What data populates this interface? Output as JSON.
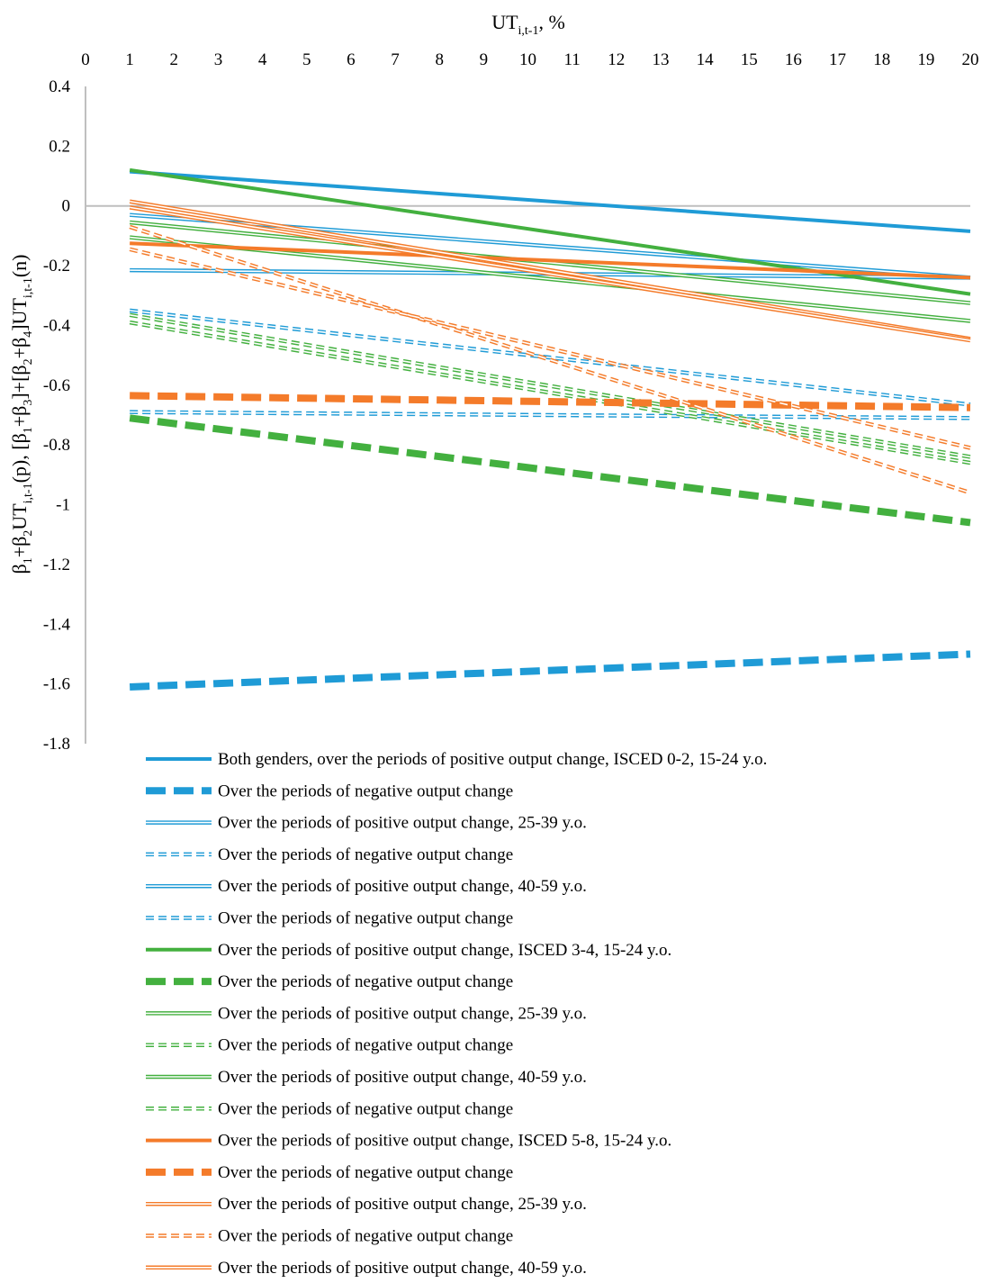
{
  "chart_data": {
    "type": "line",
    "title": "",
    "xlabel": {
      "base": "UT",
      "sub": "i,t-1",
      "suffix": ", %"
    },
    "ylabel": {
      "parts": [
        {
          "t": "β",
          "sub": false
        },
        {
          "t": "1",
          "sub": true
        },
        {
          "t": "+β",
          "sub": false
        },
        {
          "t": "2",
          "sub": true
        },
        {
          "t": "UT",
          "sub": false
        },
        {
          "t": "i,t-1",
          "sub": true
        },
        {
          "t": "(p), [β",
          "sub": false
        },
        {
          "t": "1",
          "sub": true
        },
        {
          "t": "+β",
          "sub": false
        },
        {
          "t": "3",
          "sub": true
        },
        {
          "t": "]+[β",
          "sub": false
        },
        {
          "t": "2",
          "sub": true
        },
        {
          "t": "+β",
          "sub": false
        },
        {
          "t": "4",
          "sub": true
        },
        {
          "t": "]UT",
          "sub": false
        },
        {
          "t": "i,t-1",
          "sub": true
        },
        {
          "t": "(n)",
          "sub": false
        }
      ]
    },
    "x_ticks": [
      0,
      1,
      2,
      3,
      4,
      5,
      6,
      7,
      8,
      9,
      10,
      11,
      12,
      13,
      14,
      15,
      16,
      17,
      18,
      19,
      20
    ],
    "y_ticks": [
      "0.4",
      "0.2",
      "0",
      "-0.2",
      "-0.4",
      "-0.6",
      "-0.8",
      "-1",
      "-1.2",
      "-1.4",
      "-1.6",
      "-1.8"
    ],
    "x_axis_position": "top",
    "xlim": [
      0,
      20
    ],
    "ylim": [
      -1.8,
      0.4
    ],
    "grid": false,
    "legend_position": "bottom",
    "colors": {
      "isced02": "#1f9bd6",
      "isced34": "#43b03f",
      "isced58": "#f47b2a",
      "axis": "#bfbfbf"
    },
    "series": [
      {
        "name": "Both genders, over the periods of positive output change, ISCED 0-2, 15-24 y.o.",
        "color": "#1f9bd6",
        "style": "solid-thick",
        "x": [
          1,
          20
        ],
        "values": [
          0.115,
          -0.085
        ]
      },
      {
        "name": "Over the periods of negative output change",
        "color": "#1f9bd6",
        "style": "dash-thick",
        "x": [
          1,
          20
        ],
        "values": [
          -1.61,
          -1.5
        ]
      },
      {
        "name": "Over the periods of positive output change, 25-39 y.o.",
        "color": "#1f9bd6",
        "style": "double",
        "x": [
          1,
          20
        ],
        "values": [
          -0.215,
          -0.24
        ]
      },
      {
        "name": "Over the periods of negative output change",
        "color": "#1f9bd6",
        "style": "double-dash",
        "x": [
          1,
          20
        ],
        "values": [
          -0.69,
          -0.71
        ]
      },
      {
        "name": "Over the periods of positive output change, 40-59 y.o.",
        "color": "#1f9bd6",
        "style": "double",
        "x": [
          1,
          20
        ],
        "values": [
          -0.03,
          -0.24
        ]
      },
      {
        "name": "Over the periods of negative output change",
        "color": "#1f9bd6",
        "style": "double-dash",
        "x": [
          1,
          20
        ],
        "values": [
          -0.35,
          -0.665
        ]
      },
      {
        "name": "Over the periods of positive output change, ISCED 3-4, 15-24 y.o.",
        "color": "#43b03f",
        "style": "solid-thick",
        "x": [
          1,
          20
        ],
        "values": [
          0.12,
          -0.295
        ]
      },
      {
        "name": "Over the periods of negative output change",
        "color": "#43b03f",
        "style": "dash-thick",
        "x": [
          1,
          20
        ],
        "values": [
          -0.71,
          -1.06
        ]
      },
      {
        "name": "Over the periods of positive output change, 25-39 y.o.",
        "color": "#43b03f",
        "style": "double",
        "x": [
          1,
          20
        ],
        "values": [
          -0.105,
          -0.385
        ]
      },
      {
        "name": "Over the periods of negative output change",
        "color": "#43b03f",
        "style": "double-dash",
        "x": [
          1,
          20
        ],
        "values": [
          -0.39,
          -0.86
        ]
      },
      {
        "name": "Over the periods of positive output change, 40-59 y.o.",
        "color": "#43b03f",
        "style": "double",
        "x": [
          1,
          20
        ],
        "values": [
          -0.055,
          -0.325
        ]
      },
      {
        "name": "Over the periods of negative output change",
        "color": "#43b03f",
        "style": "double-dash",
        "x": [
          1,
          20
        ],
        "values": [
          -0.365,
          -0.84
        ]
      },
      {
        "name": "Over the periods of positive output change, ISCED 5-8, 15-24 y.o.",
        "color": "#f47b2a",
        "style": "solid-thick",
        "x": [
          1,
          20
        ],
        "values": [
          -0.125,
          -0.24
        ]
      },
      {
        "name": "Over the periods of negative output change",
        "color": "#f47b2a",
        "style": "dash-thick",
        "x": [
          1,
          20
        ],
        "values": [
          -0.635,
          -0.675
        ]
      },
      {
        "name": "Over the periods of positive output change, 25-39 y.o.",
        "color": "#f47b2a",
        "style": "double",
        "x": [
          1,
          20
        ],
        "values": [
          0.015,
          -0.445
        ]
      },
      {
        "name": "Over the periods of negative output change",
        "color": "#f47b2a",
        "style": "double-dash",
        "x": [
          1,
          20
        ],
        "values": [
          -0.07,
          -0.96
        ]
      },
      {
        "name": "Over the periods of positive output change, 40-59 y.o.",
        "color": "#f47b2a",
        "style": "double",
        "x": [
          1,
          20
        ],
        "values": [
          -0.005,
          -0.45
        ]
      },
      {
        "name": "Over the periods of negative output change",
        "color": "#f47b2a",
        "style": "double-dash",
        "x": [
          1,
          20
        ],
        "values": [
          -0.145,
          -0.81
        ]
      }
    ]
  }
}
